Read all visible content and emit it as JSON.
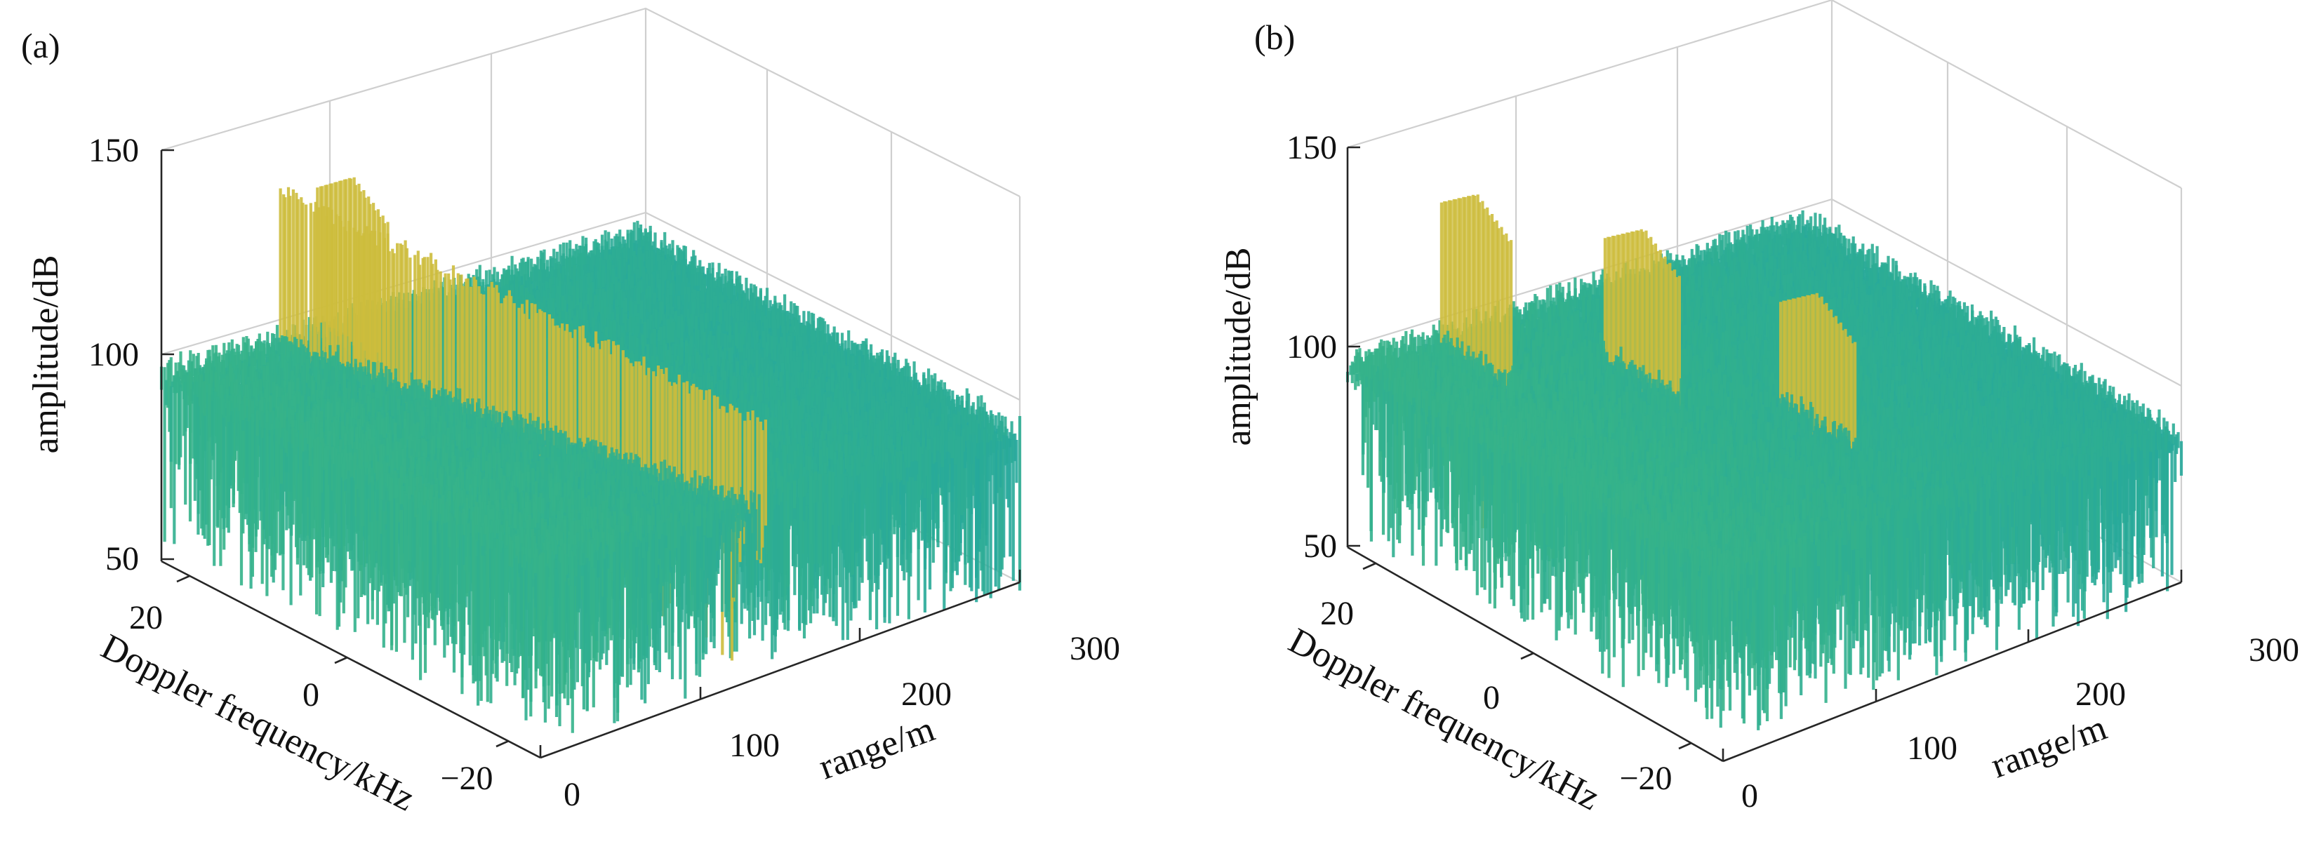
{
  "chart_data": [
    {
      "type": "surface",
      "panel_label": "(a)",
      "xlabel": "range/m",
      "ylabel": "Doppler frequency/kHz",
      "zlabel": "amplitude/dB",
      "x_ticks": [
        "0",
        "100",
        "200",
        "300"
      ],
      "y_ticks": [
        "20",
        "0",
        "−20"
      ],
      "z_ticks": [
        "150",
        "100",
        "50"
      ],
      "xlim": [
        0,
        300
      ],
      "ylim": [
        -25,
        25
      ],
      "zlim": [
        50,
        150
      ],
      "grid": true,
      "colormap": [
        "#3f5fc9",
        "#2f8ec4",
        "#27a99b",
        "#3fb97d",
        "#a3c64a",
        "#e9b632"
      ],
      "noise_floor_db": 97,
      "noise_floor_end_db": 88,
      "target_ridges": [
        {
          "doppler_khz_start": 25,
          "doppler_khz_end": -25,
          "range_m": 75,
          "range_m_end": 140,
          "peak_db_start": 130,
          "peak_db_end": 112
        }
      ],
      "target_peaks": [
        {
          "range_m": 95,
          "doppler_khz": 20,
          "peak_db": 135
        }
      ]
    },
    {
      "type": "surface",
      "panel_label": "(b)",
      "xlabel": "range/m",
      "ylabel": "Doppler frequency/kHz",
      "zlabel": "amplitude/dB",
      "x_ticks": [
        "0",
        "100",
        "200",
        "300"
      ],
      "y_ticks": [
        "20",
        "0",
        "−20"
      ],
      "z_ticks": [
        "150",
        "100",
        "50"
      ],
      "xlim": [
        0,
        300
      ],
      "ylim": [
        -25,
        25
      ],
      "zlim": [
        50,
        150
      ],
      "grid": true,
      "colormap": [
        "#3f5fc9",
        "#2f8ec4",
        "#27a99b",
        "#3fb97d",
        "#a3c64a",
        "#e9b632"
      ],
      "noise_floor_db": 97,
      "noise_floor_end_db": 88,
      "target_peaks": [
        {
          "range_m": 60,
          "doppler_khz": 20,
          "peak_db": 135
        },
        {
          "range_m": 120,
          "doppler_khz": 10,
          "peak_db": 128
        },
        {
          "range_m": 160,
          "doppler_khz": -5,
          "peak_db": 122
        }
      ]
    }
  ]
}
